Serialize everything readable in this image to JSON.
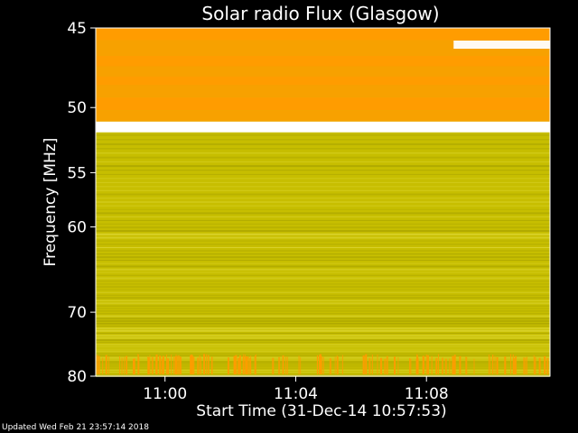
{
  "chart_data": {
    "type": "heatmap",
    "title": "Solar radio Flux (Glasgow)",
    "xlabel": "Start Time (31-Dec-14 10:57:53)",
    "ylabel": "Frequency [MHz]",
    "x_ticks": [
      "11:00",
      "11:04",
      "11:08"
    ],
    "x_tick_minutes": [
      2.12,
      6.12,
      10.12
    ],
    "xlim_minutes": [
      0,
      13.9
    ],
    "y_ticks": [
      45,
      50,
      55,
      60,
      70,
      80
    ],
    "ylim": [
      45,
      80
    ],
    "y_scale": "reciprocal",
    "grid": false,
    "colors": {
      "background": "#000000",
      "main": "#c7be00",
      "high": "#ff9c00",
      "peak": "#ffffff"
    },
    "bands": [
      {
        "from": 45.0,
        "to": 45.7,
        "level": "high"
      },
      {
        "from": 45.7,
        "to": 46.6,
        "level": "high"
      },
      {
        "from": 46.6,
        "to": 47.3,
        "level": "high"
      },
      {
        "from": 47.3,
        "to": 47.9,
        "level": "high"
      },
      {
        "from": 47.9,
        "to": 48.5,
        "level": "high"
      },
      {
        "from": 48.5,
        "to": 49.3,
        "level": "high"
      },
      {
        "from": 49.3,
        "to": 50.2,
        "level": "high"
      },
      {
        "from": 50.2,
        "to": 51.0,
        "level": "high"
      },
      {
        "from": 51.0,
        "to": 51.8,
        "level": "peak"
      },
      {
        "from": 51.8,
        "to": 80.0,
        "level": "main"
      }
    ]
  },
  "footer": {
    "updated": "Updated Wed Feb 21 23:57:14 2018"
  }
}
